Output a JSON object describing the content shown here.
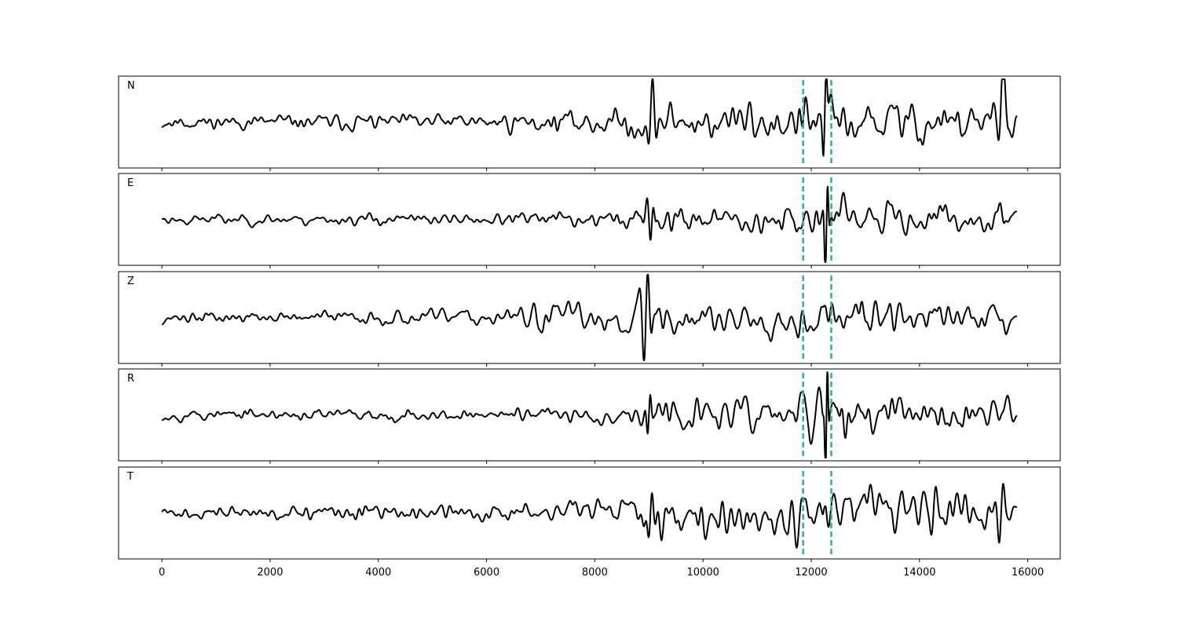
{
  "chart_data": {
    "type": "line",
    "panel_count": 5,
    "xlim": [
      -800,
      16600
    ],
    "x_ticks": [
      0,
      2000,
      4000,
      6000,
      8000,
      10000,
      12000,
      14000,
      16000
    ],
    "x_tick_labels": [
      "0",
      "2000",
      "4000",
      "6000",
      "8000",
      "10000",
      "12000",
      "14000",
      "16000"
    ],
    "sample_range": [
      0,
      15800
    ],
    "markers": [
      {
        "x": 11850,
        "color": "#1abcb0",
        "style": "dashed"
      },
      {
        "x": 12370,
        "color": "#1abcb0",
        "style": "dashed"
      }
    ],
    "trace_color": "#000000",
    "series": [
      {
        "name": "N",
        "seed": 11,
        "envelope": [
          [
            0,
            0.24
          ],
          [
            6000,
            0.3
          ],
          [
            8500,
            0.5
          ],
          [
            9000,
            0.85
          ],
          [
            10000,
            0.7
          ],
          [
            11500,
            0.8
          ],
          [
            12200,
            1.0
          ],
          [
            13000,
            0.75
          ],
          [
            15000,
            0.75
          ],
          [
            15500,
            1.0
          ],
          [
            15800,
            0.8
          ]
        ],
        "bursts": [
          [
            9030,
            1.0,
            80
          ],
          [
            12250,
            1.2,
            60
          ],
          [
            15500,
            1.1,
            120
          ]
        ]
      },
      {
        "name": "E",
        "seed": 23,
        "envelope": [
          [
            0,
            0.2
          ],
          [
            6000,
            0.22
          ],
          [
            8500,
            0.35
          ],
          [
            9000,
            0.7
          ],
          [
            10000,
            0.45
          ],
          [
            11500,
            0.55
          ],
          [
            12200,
            0.95
          ],
          [
            13000,
            0.55
          ],
          [
            15000,
            0.55
          ],
          [
            15800,
            0.6
          ]
        ],
        "bursts": [
          [
            9050,
            0.7,
            70
          ],
          [
            12280,
            1.4,
            50
          ]
        ]
      },
      {
        "name": "Z",
        "seed": 37,
        "envelope": [
          [
            0,
            0.18
          ],
          [
            6500,
            0.3
          ],
          [
            6700,
            0.55
          ],
          [
            8500,
            0.55
          ],
          [
            9000,
            1.0
          ],
          [
            9600,
            0.65
          ],
          [
            11500,
            0.65
          ],
          [
            12300,
            0.7
          ],
          [
            14000,
            0.6
          ],
          [
            15800,
            0.45
          ]
        ],
        "bursts": [
          [
            8950,
            1.4,
            90
          ]
        ]
      },
      {
        "name": "R",
        "seed": 53,
        "envelope": [
          [
            0,
            0.2
          ],
          [
            6000,
            0.2
          ],
          [
            8500,
            0.35
          ],
          [
            9000,
            0.6
          ],
          [
            10000,
            0.5
          ],
          [
            11500,
            0.6
          ],
          [
            12200,
            1.0
          ],
          [
            13000,
            0.6
          ],
          [
            15800,
            0.55
          ]
        ],
        "bursts": [
          [
            12280,
            1.6,
            40
          ],
          [
            9000,
            0.6,
            60
          ]
        ]
      },
      {
        "name": "T",
        "seed": 71,
        "envelope": [
          [
            0,
            0.26
          ],
          [
            6000,
            0.32
          ],
          [
            8500,
            0.55
          ],
          [
            9000,
            0.9
          ],
          [
            10000,
            0.75
          ],
          [
            11500,
            0.85
          ],
          [
            12200,
            1.0
          ],
          [
            14000,
            0.85
          ],
          [
            15500,
            1.0
          ],
          [
            15800,
            0.7
          ]
        ],
        "bursts": [
          [
            9030,
            1.0,
            80
          ],
          [
            15500,
            0.9,
            100
          ]
        ]
      }
    ]
  }
}
